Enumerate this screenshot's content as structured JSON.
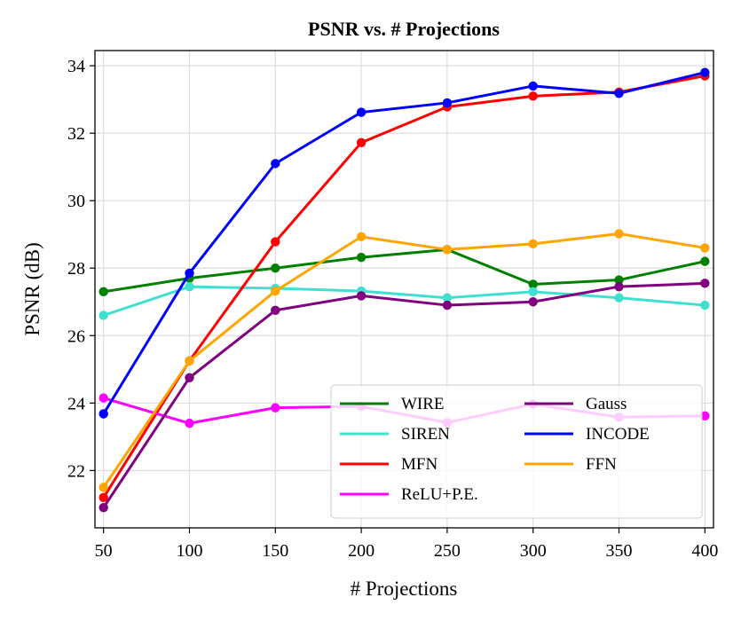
{
  "chart_data": {
    "type": "line",
    "title": "PSNR vs. # Projections",
    "xlabel": "# Projections",
    "ylabel": "PSNR (dB)",
    "x": [
      50,
      100,
      150,
      200,
      250,
      300,
      350,
      400
    ],
    "xlim": [
      45,
      405
    ],
    "ylim": [
      20.3,
      34.45
    ],
    "xticks": [
      50,
      100,
      150,
      200,
      250,
      300,
      350,
      400
    ],
    "yticks": [
      22,
      24,
      26,
      28,
      30,
      32,
      34
    ],
    "grid": true,
    "legend_position": "lower-right",
    "series": [
      {
        "name": "WIRE",
        "color": "#008000",
        "values": [
          27.3,
          27.7,
          28.0,
          28.32,
          28.55,
          27.52,
          27.65,
          28.2
        ]
      },
      {
        "name": "SIREN",
        "color": "#40e0d0",
        "values": [
          26.6,
          27.45,
          27.4,
          27.32,
          27.12,
          27.3,
          27.12,
          26.9
        ]
      },
      {
        "name": "MFN",
        "color": "#ff0000",
        "values": [
          21.2,
          25.25,
          28.78,
          31.72,
          32.78,
          33.1,
          33.22,
          33.7
        ]
      },
      {
        "name": "ReLU+P.E.",
        "color": "#ff00ff",
        "values": [
          24.15,
          23.4,
          23.86,
          23.9,
          23.42,
          23.97,
          23.58,
          23.62
        ]
      },
      {
        "name": "Gauss",
        "color": "#800080",
        "values": [
          20.9,
          24.75,
          26.75,
          27.18,
          26.9,
          27.0,
          27.45,
          27.55
        ]
      },
      {
        "name": "INCODE",
        "color": "#0000ff",
        "values": [
          23.68,
          27.85,
          31.1,
          32.62,
          32.9,
          33.4,
          33.18,
          33.8
        ]
      },
      {
        "name": "FFN",
        "color": "#ffa500",
        "values": [
          21.5,
          25.25,
          27.32,
          28.93,
          28.55,
          28.72,
          29.02,
          28.6
        ]
      }
    ]
  }
}
